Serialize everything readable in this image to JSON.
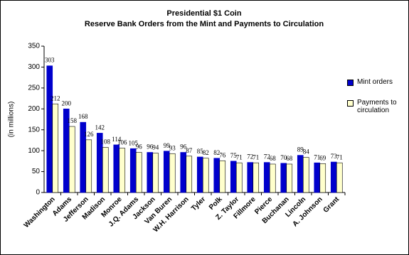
{
  "chart_data": {
    "type": "bar",
    "title": "Presidential $1 Coin",
    "subtitle": "Reserve Bank Orders from the Mint and Payments to Circulation",
    "y_label": "(in millions)",
    "categories": [
      "Washington",
      "Adams",
      "Jefferson",
      "Madison",
      "Monroe",
      "J.Q. Adams",
      "Jackson",
      "Van Buren",
      "W.H. Harrison",
      "Tyler",
      "Polk",
      "Z. Taylor",
      "Fillmore",
      "Pierce",
      "Buchanan",
      "Lincoln",
      "A. Johnson",
      "Grant"
    ],
    "series": [
      {
        "name": "Mint orders",
        "color": "#0000cc",
        "values": [
          303,
          200,
          168,
          142,
          114,
          105,
          96,
          99,
          96,
          85,
          82,
          75,
          72,
          72,
          70,
          89,
          71,
          73
        ]
      },
      {
        "name": "Payments to circulation",
        "color": "#ffffcc",
        "values": [
          212,
          158,
          126,
          108,
          106,
          96,
          94,
          93,
          87,
          82,
          76,
          71,
          71,
          68,
          68,
          84,
          69,
          71
        ]
      }
    ],
    "ylim": [
      0,
      350
    ],
    "yticks": [
      0,
      50,
      100,
      150,
      200,
      250,
      300,
      350
    ],
    "legend": "right"
  }
}
